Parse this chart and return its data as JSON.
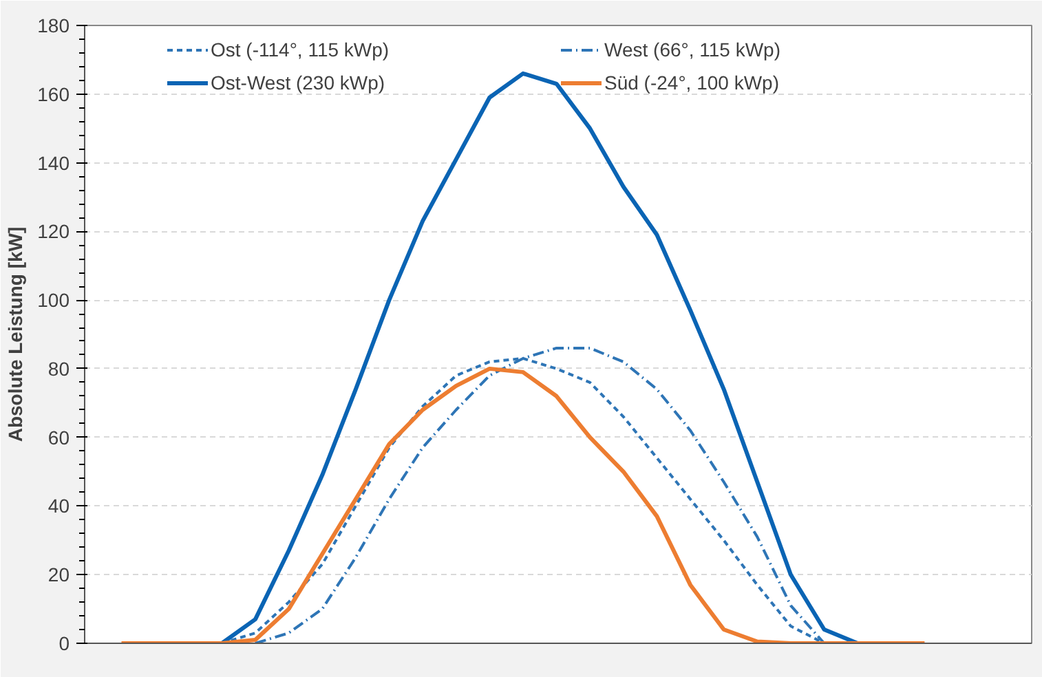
{
  "chart_data": {
    "type": "line",
    "ylabel": "Absolute Leistung [kW]",
    "categories": [
      null,
      null,
      null,
      null,
      null,
      null,
      null,
      null,
      null,
      null,
      null,
      null,
      null,
      null,
      null,
      null,
      null,
      null,
      null,
      null,
      null,
      null,
      null,
      null,
      null
    ],
    "ylim": [
      0,
      180
    ],
    "yticks": [
      0,
      20,
      40,
      60,
      80,
      100,
      120,
      140,
      160,
      180
    ],
    "grid": "y",
    "legend": "top",
    "tick_labels": "y",
    "marker": "none",
    "series": [
      {
        "name": "Ost (-114°, 115 kWp)",
        "color": "#2e75b6",
        "line_style": "dashed",
        "values": [
          null,
          null,
          null,
          0,
          3,
          12,
          23,
          40,
          57,
          69,
          78,
          82,
          83,
          80,
          76,
          66,
          54,
          42,
          30,
          17,
          5,
          0,
          null,
          null,
          null
        ]
      },
      {
        "name": "West (66°, 115 kWp)",
        "color": "#2e75b6",
        "line_style": "dashdot",
        "values": [
          null,
          null,
          null,
          null,
          0,
          3,
          10,
          25,
          42,
          57,
          68,
          78,
          83,
          86,
          86,
          82,
          74,
          62,
          47,
          31,
          11,
          0,
          null,
          null,
          null
        ]
      },
      {
        "name": "Ost-West (230 kWp)",
        "color": "#0a64b4",
        "line_style": "solid",
        "values": [
          null,
          null,
          null,
          0,
          7,
          27,
          49,
          74,
          100,
          123,
          141,
          159,
          166,
          163,
          150,
          133,
          119,
          97,
          74,
          47,
          20,
          4,
          0,
          null,
          null
        ]
      },
      {
        "name": "Süd (-24°, 100 kWp)",
        "color": "#ed7d31",
        "line_style": "solid",
        "values": [
          0,
          0,
          0,
          0,
          1,
          10,
          26,
          42,
          58,
          68,
          75,
          80,
          79,
          72,
          60,
          50,
          37,
          17,
          4,
          0.5,
          0,
          0,
          0,
          0,
          0
        ]
      }
    ]
  }
}
